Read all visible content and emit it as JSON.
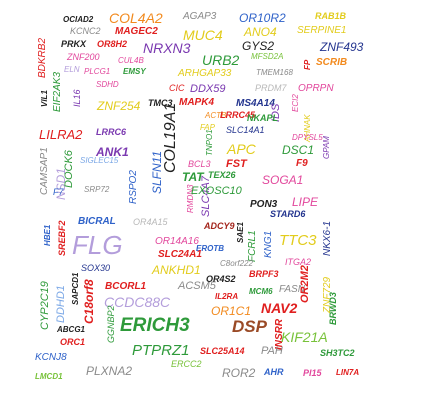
{
  "palette": {
    "black": "#222222",
    "gray": "#8a8a8a",
    "lgray": "#b8b8b8",
    "red": "#e01f1f",
    "orange": "#f28a1e",
    "yellow": "#e2cc1c",
    "lgreen": "#78c23a",
    "green": "#2e9a3a",
    "teal": "#22a6a2",
    "blue": "#2f62c9",
    "navy": "#24358f",
    "purple": "#7a38b0",
    "lpurple": "#b39ddb",
    "pink": "#e2479c",
    "brown": "#9a4a26",
    "lblue": "#7aa7e6",
    "darkred": "#a3241b"
  },
  "words": [
    {
      "text": "OCIAD2",
      "color": "black"
    },
    {
      "text": "COL4A2",
      "color": "orange"
    },
    {
      "text": "AGAP3",
      "color": "gray"
    },
    {
      "text": "OR10R2",
      "color": "blue"
    },
    {
      "text": "RAB1B",
      "color": "yellow"
    },
    {
      "text": "KCNC2",
      "color": "gray"
    },
    {
      "text": "MAGEC2",
      "color": "red"
    },
    {
      "text": "MUC4",
      "color": "yellow"
    },
    {
      "text": "ANO4",
      "color": "yellow"
    },
    {
      "text": "SERPINE1",
      "color": "yellow"
    },
    {
      "text": "BDKRB2",
      "color": "red"
    },
    {
      "text": "PRKX",
      "color": "black"
    },
    {
      "text": "OR8H2",
      "color": "red"
    },
    {
      "text": "NRXN3",
      "color": "purple"
    },
    {
      "text": "GYS2",
      "color": "black"
    },
    {
      "text": "ZNF493",
      "color": "navy"
    },
    {
      "text": "ZNF200",
      "color": "pink"
    },
    {
      "text": "CUL4B",
      "color": "pink"
    },
    {
      "text": "URB2",
      "color": "green"
    },
    {
      "text": "MFSD2A",
      "color": "lgreen"
    },
    {
      "text": "FP",
      "color": "red"
    },
    {
      "text": "SCRIB",
      "color": "orange"
    },
    {
      "text": "VIL1",
      "color": "black"
    },
    {
      "text": "EIF2AK3",
      "color": "green"
    },
    {
      "text": "ELN",
      "color": "lpurple"
    },
    {
      "text": "PLCG1",
      "color": "pink"
    },
    {
      "text": "EMSY",
      "color": "green"
    },
    {
      "text": "ARHGAP33",
      "color": "yellow"
    },
    {
      "text": "TMEM168",
      "color": "gray"
    },
    {
      "text": "IL16",
      "color": "purple"
    },
    {
      "text": "SDHD",
      "color": "pink"
    },
    {
      "text": "CIC",
      "color": "red"
    },
    {
      "text": "DDX59",
      "color": "purple"
    },
    {
      "text": "PRDM7",
      "color": "lgray"
    },
    {
      "text": "OPRPN",
      "color": "pink"
    },
    {
      "text": "ZNF254",
      "color": "yellow"
    },
    {
      "text": "TMC3",
      "color": "black"
    },
    {
      "text": "MAPK4",
      "color": "red"
    },
    {
      "text": "MS4A14",
      "color": "navy"
    },
    {
      "text": "IDS",
      "color": "purple"
    },
    {
      "text": "ECI2",
      "color": "pink"
    },
    {
      "text": "COL19A1",
      "color": "black"
    },
    {
      "text": "ACTB",
      "color": "orange"
    },
    {
      "text": "LRRC45",
      "color": "red"
    },
    {
      "text": "NKAPL",
      "color": "green"
    },
    {
      "text": "AHNAK",
      "color": "yellow"
    },
    {
      "text": "GPAM",
      "color": "purple"
    },
    {
      "text": "LILRA2",
      "color": "red"
    },
    {
      "text": "LRRC6",
      "color": "purple"
    },
    {
      "text": "FAP",
      "color": "yellow"
    },
    {
      "text": "SLC14A1",
      "color": "navy"
    },
    {
      "text": "CAMSAP1",
      "color": "gray"
    },
    {
      "text": "ANK1",
      "color": "purple"
    },
    {
      "text": "TNPO1",
      "color": "green"
    },
    {
      "text": "APC",
      "color": "yellow"
    },
    {
      "text": "DSC1",
      "color": "green"
    },
    {
      "text": "DPYSL5",
      "color": "pink"
    },
    {
      "text": "NSD1",
      "color": "lpurple"
    },
    {
      "text": "DOCK6",
      "color": "green"
    },
    {
      "text": "SIGLEC15",
      "color": "lblue"
    },
    {
      "text": "SLFN11",
      "color": "blue"
    },
    {
      "text": "BCL3",
      "color": "pink"
    },
    {
      "text": "FST",
      "color": "red"
    },
    {
      "text": "F9",
      "color": "red"
    },
    {
      "text": "F7",
      "color": "blue"
    },
    {
      "text": "SRP72",
      "color": "gray"
    },
    {
      "text": "RSPO2",
      "color": "blue"
    },
    {
      "text": "RMDN3",
      "color": "pink"
    },
    {
      "text": "SLC4A7",
      "color": "purple"
    },
    {
      "text": "TAT",
      "color": "green"
    },
    {
      "text": "TEX26",
      "color": "green"
    },
    {
      "text": "SOGA1",
      "color": "pink"
    },
    {
      "text": "EXOSC10",
      "color": "green"
    },
    {
      "text": "PON3",
      "color": "black"
    },
    {
      "text": "LIPE",
      "color": "pink"
    },
    {
      "text": "STARD6",
      "color": "navy"
    },
    {
      "text": "BICRAL",
      "color": "blue"
    },
    {
      "text": "OR4A15",
      "color": "lgray"
    },
    {
      "text": "ADCY9",
      "color": "darkred"
    },
    {
      "text": "HBE1",
      "color": "blue"
    },
    {
      "text": "SREBF2",
      "color": "red"
    },
    {
      "text": "FLG",
      "color": "lpurple"
    },
    {
      "text": "OR14A16",
      "color": "pink"
    },
    {
      "text": "SAE1",
      "color": "black"
    },
    {
      "text": "FCRL1",
      "color": "green"
    },
    {
      "text": "KNG1",
      "color": "blue"
    },
    {
      "text": "TTC3",
      "color": "yellow"
    },
    {
      "text": "NKX6-1",
      "color": "navy"
    },
    {
      "text": "EROTB",
      "color": "blue"
    },
    {
      "text": "SLC24A1",
      "color": "red"
    },
    {
      "text": "SOX30",
      "color": "navy"
    },
    {
      "text": "ANKHD1",
      "color": "yellow"
    },
    {
      "text": "C8orf222",
      "color": "gray"
    },
    {
      "text": "ITGA2",
      "color": "pink"
    },
    {
      "text": "CYP2C19",
      "color": "green"
    },
    {
      "text": "DDHD1",
      "color": "lblue"
    },
    {
      "text": "C18orf8",
      "color": "red"
    },
    {
      "text": "SAPCD1",
      "color": "black"
    },
    {
      "text": "BCORL1",
      "color": "red"
    },
    {
      "text": "ACSM5",
      "color": "gray"
    },
    {
      "text": "OR4S2",
      "color": "black"
    },
    {
      "text": "BRPF3",
      "color": "red"
    },
    {
      "text": "ZNF729",
      "color": "yellow"
    },
    {
      "text": "CCDC88C",
      "color": "lpurple"
    },
    {
      "text": "IL2RA",
      "color": "red"
    },
    {
      "text": "MCM6",
      "color": "green"
    },
    {
      "text": "FASN",
      "color": "gray"
    },
    {
      "text": "BRWD3",
      "color": "green"
    },
    {
      "text": "OR2M2",
      "color": "red"
    },
    {
      "text": "OR1C1",
      "color": "orange"
    },
    {
      "text": "NAV2",
      "color": "red"
    },
    {
      "text": "ABCG1",
      "color": "black"
    },
    {
      "text": "GGNBP2",
      "color": "green"
    },
    {
      "text": "ORC1",
      "color": "red"
    },
    {
      "text": "ERICH3",
      "color": "green"
    },
    {
      "text": "DSP",
      "color": "brown"
    },
    {
      "text": "INSRR",
      "color": "red"
    },
    {
      "text": "KIF21A",
      "color": "lgreen"
    },
    {
      "text": "KCNJ8",
      "color": "blue"
    },
    {
      "text": "PTPRZ1",
      "color": "green"
    },
    {
      "text": "SLC25A14",
      "color": "red"
    },
    {
      "text": "PAH",
      "color": "gray"
    },
    {
      "text": "SH3TC2",
      "color": "green"
    },
    {
      "text": "ERCC2",
      "color": "lgreen"
    },
    {
      "text": "LMCD1",
      "color": "lgreen"
    },
    {
      "text": "PLXNA2",
      "color": "gray"
    },
    {
      "text": "ROR2",
      "color": "gray"
    },
    {
      "text": "AHR",
      "color": "blue"
    },
    {
      "text": "PI15",
      "color": "pink"
    },
    {
      "text": "LIN7A",
      "color": "red"
    }
  ]
}
